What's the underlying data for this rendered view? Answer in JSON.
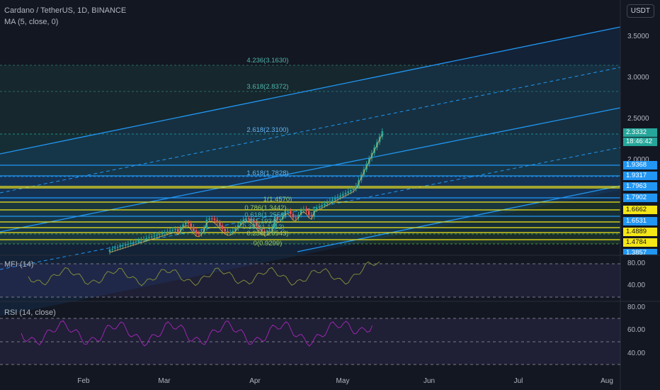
{
  "header": {
    "symbol_line": "Cardano / TetherUS, 1D, BINANCE",
    "indicator_line": "MA (5, close, 0)",
    "currency_button": "USDT"
  },
  "price_axis": {
    "labels": [
      "3.5000",
      "3.0000",
      "2.5000",
      "2.0000"
    ],
    "current_price": "2.3332",
    "countdown": "18:46:42",
    "tags": [
      {
        "text": "1.9368",
        "bg": "#2196f3",
        "fg": "#ffffff"
      },
      {
        "text": "1.9317",
        "bg": "#2196f3",
        "fg": "#ffffff"
      },
      {
        "text": "1.7963",
        "bg": "#2196f3",
        "fg": "#ffffff"
      },
      {
        "text": "1.7902",
        "bg": "#2196f3",
        "fg": "#ffffff"
      },
      {
        "text": "1.6662",
        "bg": "#f5e617",
        "fg": "#131722"
      },
      {
        "text": "1.6531",
        "bg": "#2196f3",
        "fg": "#ffffff"
      },
      {
        "text": "1.4889",
        "bg": "#f5e617",
        "fg": "#131722"
      },
      {
        "text": "1.4784",
        "bg": "#f5e617",
        "fg": "#131722"
      },
      {
        "text": "1.3857",
        "bg": "#2196f3",
        "fg": "#ffffff"
      }
    ]
  },
  "fib_levels": [
    {
      "label": "4.236(3.1630)"
    },
    {
      "label": "3.618(2.8372)"
    },
    {
      "label": "2.618(2.3100)"
    },
    {
      "label": "1.618(1.7828)"
    },
    {
      "label": "1(1.4570)"
    },
    {
      "label": "0.786(1.3442)"
    },
    {
      "label": "0.618(1.2556)"
    },
    {
      "label": "0.5(1.1934)"
    },
    {
      "label": "0.382(1.1312)"
    },
    {
      "label": "0.236(1.0543)"
    },
    {
      "label": "0(0.9299)"
    }
  ],
  "mfi_panel": {
    "label": "MFI (14)",
    "axis": [
      "80.00",
      "40.00"
    ]
  },
  "rsi_panel": {
    "label": "RSI (14, close)",
    "axis": [
      "80.00",
      "60.00",
      "40.00"
    ]
  },
  "time_axis": {
    "labels": [
      "Feb",
      "Mar",
      "Apr",
      "May",
      "Jun",
      "Jul",
      "Aug"
    ]
  },
  "colors": {
    "background": "#131722",
    "up_candle": "#26a69a",
    "down_candle": "#ef5350",
    "channel_line": "#2196f3",
    "horizontal_yellow": "#f5e617",
    "mfi_line": "#7e8a3a",
    "rsi_line": "#9c27b0"
  }
}
